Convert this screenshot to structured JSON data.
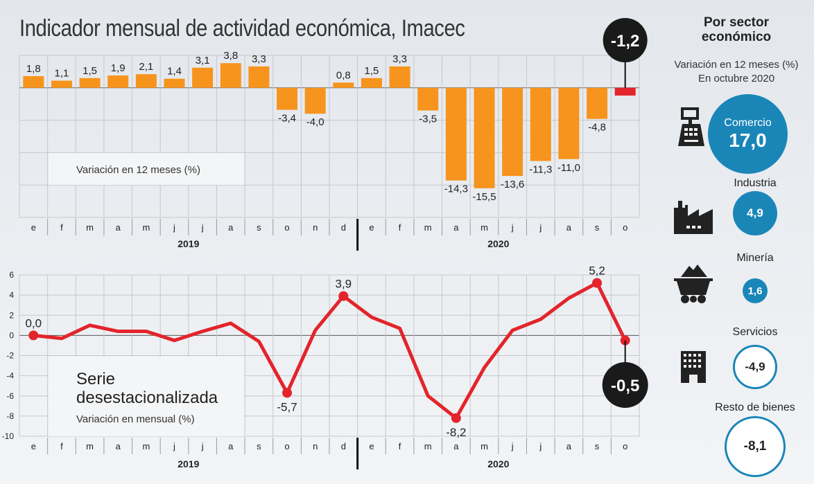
{
  "title": "Indicador mensual de actividad económica, Imacec",
  "chart_data": [
    {
      "type": "bar",
      "subtitle": "Variación en 12 meses (%)",
      "categories": [
        "e",
        "f",
        "m",
        "a",
        "m",
        "j",
        "j",
        "a",
        "s",
        "o",
        "n",
        "d",
        "e",
        "f",
        "m",
        "a",
        "m",
        "j",
        "j",
        "a",
        "s",
        "o"
      ],
      "years": [
        "2019",
        "2020"
      ],
      "values": [
        1.8,
        1.1,
        1.5,
        1.9,
        2.1,
        1.4,
        3.1,
        3.8,
        3.3,
        -3.4,
        -4.0,
        0.8,
        1.5,
        3.3,
        -3.5,
        -14.3,
        -15.5,
        -13.6,
        -11.3,
        -11.0,
        -4.8,
        -1.2
      ],
      "labels": [
        "1,8",
        "1,1",
        "1,5",
        "1,9",
        "2,1",
        "1,4",
        "3,1",
        "3,8",
        "3,3",
        "-3,4",
        "-4,0",
        "0,8",
        "1,5",
        "3,3",
        "-3,5",
        "-14,3",
        "-15,5",
        "-13,6",
        "-11,3",
        "-11,0",
        "-4,8",
        "-1,2"
      ],
      "ylim": [
        -20,
        5
      ],
      "bar_color": "#f7941d",
      "highlight_color": "#e3242b",
      "highlight_label": "-1,2"
    },
    {
      "type": "line",
      "title": "Serie desestacionalizada",
      "subtitle": "Variación en mensual (%)",
      "categories": [
        "e",
        "f",
        "m",
        "a",
        "m",
        "j",
        "j",
        "a",
        "s",
        "o",
        "n",
        "d",
        "e",
        "f",
        "m",
        "a",
        "m",
        "j",
        "j",
        "a",
        "s",
        "o"
      ],
      "years": [
        "2019",
        "2020"
      ],
      "values": [
        0.0,
        -0.3,
        1.0,
        0.4,
        0.4,
        -0.5,
        0.4,
        1.2,
        -0.6,
        -5.7,
        0.5,
        3.9,
        1.8,
        0.7,
        -6.0,
        -8.2,
        -3.2,
        0.5,
        1.6,
        3.7,
        5.2,
        -0.5
      ],
      "point_labels": {
        "0": "0,0",
        "9": "-5,7",
        "11": "3,9",
        "15": "-8,2",
        "20": "5,2"
      },
      "highlight_label": "-0,5",
      "yticks": [
        "6",
        "4",
        "2",
        "0",
        "-2",
        "-4",
        "-6",
        "-8",
        "-10"
      ],
      "ylim": [
        -10,
        6
      ],
      "line_color": "#e3242b"
    }
  ],
  "panel": {
    "title_1": "Por sector",
    "title_2": "económico",
    "sub_1": "Variación en 12 meses (%)",
    "sub_2": "En octubre 2020",
    "sectors": [
      {
        "name": "Comercio",
        "value": "17,0"
      },
      {
        "name": "Industria",
        "value": "4,9"
      },
      {
        "name": "Minería",
        "value": "1,6"
      },
      {
        "name": "Servicios",
        "value": "-4,9"
      },
      {
        "name": "Resto de bienes",
        "value": "-8,1"
      }
    ],
    "accent": "#1a86b8"
  }
}
